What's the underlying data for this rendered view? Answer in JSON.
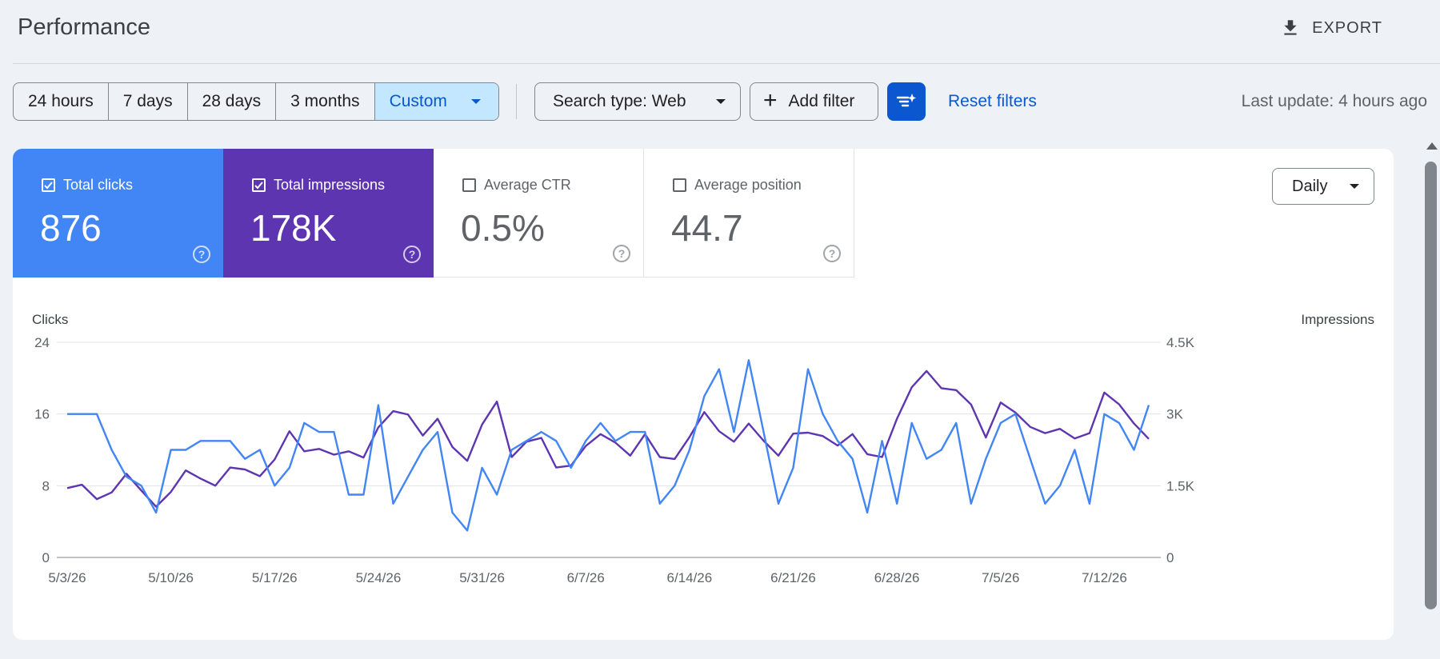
{
  "header": {
    "title": "Performance",
    "export_label": "EXPORT",
    "export_icon": "download-icon"
  },
  "toolbar": {
    "ranges": [
      "24 hours",
      "7 days",
      "28 days",
      "3 months",
      "Custom"
    ],
    "active_range": "Custom",
    "search_type": "Search type: Web",
    "add_filter": "Add filter",
    "reset_filters": "Reset filters",
    "last_update": "Last update: 4 hours ago"
  },
  "metrics": [
    {
      "label": "Total clicks",
      "value": "876",
      "checked": true,
      "color": "#4285f4"
    },
    {
      "label": "Total impressions",
      "value": "178K",
      "checked": true,
      "color": "#5e35b1"
    },
    {
      "label": "Average CTR",
      "value": "0.5%",
      "checked": false
    },
    {
      "label": "Average position",
      "value": "44.7",
      "checked": false
    }
  ],
  "granularity": "Daily",
  "chart_data": {
    "type": "line",
    "x_labels": [
      "5/3/26",
      "5/10/26",
      "5/17/26",
      "5/24/26",
      "5/31/26",
      "6/7/26",
      "6/14/26",
      "6/21/26",
      "6/28/26",
      "7/5/26",
      "7/12/26"
    ],
    "x_start": "5/3/26",
    "left_axis": {
      "label": "Clicks",
      "ticks": [
        "0",
        "8",
        "16",
        "24"
      ],
      "max": 24
    },
    "right_axis": {
      "label": "Impressions",
      "ticks": [
        "0",
        "1.5K",
        "3K",
        "4.5K"
      ],
      "max": 4500
    },
    "grid": true,
    "series": [
      {
        "name": "Clicks",
        "axis": "left",
        "color": "#4285f4",
        "values": [
          16,
          16,
          16,
          12,
          9,
          8,
          5,
          12,
          12,
          13,
          13,
          13,
          11,
          12,
          8,
          10,
          15,
          14,
          14,
          7,
          7,
          17,
          6,
          9,
          12,
          14,
          5,
          3,
          10,
          7,
          12,
          13,
          14,
          13,
          10,
          13,
          15,
          13,
          14,
          14,
          6,
          8,
          12,
          18,
          21,
          14,
          22,
          14,
          6,
          10,
          21,
          16,
          13,
          11,
          5,
          13,
          6,
          15,
          11,
          12,
          15,
          6,
          11,
          15,
          16,
          11,
          6,
          8,
          12,
          6,
          16,
          15,
          12,
          17
        ]
      },
      {
        "name": "Impressions",
        "axis": "right",
        "color": "#5e35b1",
        "values": [
          1450,
          1520,
          1220,
          1360,
          1750,
          1400,
          1060,
          1370,
          1820,
          1650,
          1500,
          1880,
          1840,
          1700,
          2050,
          2640,
          2220,
          2270,
          2150,
          2220,
          2090,
          2720,
          3060,
          2990,
          2550,
          2900,
          2310,
          2020,
          2780,
          3260,
          2100,
          2420,
          2500,
          1880,
          1920,
          2330,
          2580,
          2400,
          2130,
          2580,
          2100,
          2060,
          2520,
          3040,
          2640,
          2420,
          2800,
          2440,
          2130,
          2590,
          2610,
          2540,
          2340,
          2580,
          2160,
          2100,
          2900,
          3560,
          3900,
          3540,
          3500,
          3200,
          2510,
          3240,
          3030,
          2730,
          2600,
          2690,
          2490,
          2600,
          3450,
          3200,
          2800,
          2480
        ]
      }
    ]
  }
}
